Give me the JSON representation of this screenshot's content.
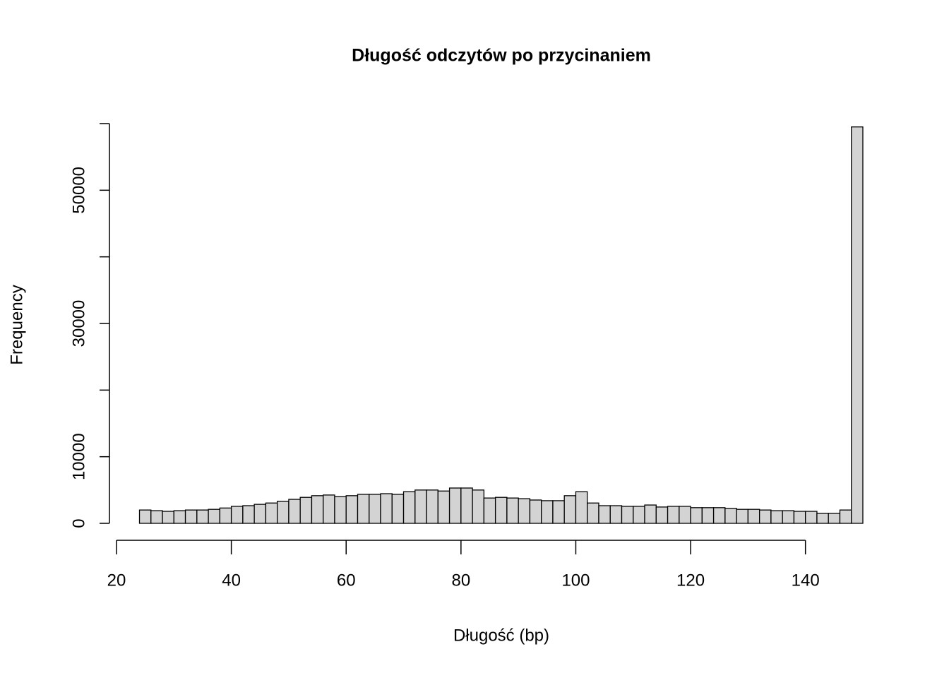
{
  "chart_data": {
    "type": "histogram",
    "title": "Długość odczytów po przycinaniem",
    "x_label": "Długość (bp)",
    "y_label": "Frequency",
    "bins": [
      24,
      26,
      28,
      30,
      32,
      34,
      36,
      38,
      40,
      42,
      44,
      46,
      48,
      50,
      52,
      54,
      56,
      58,
      60,
      62,
      64,
      66,
      68,
      70,
      72,
      74,
      76,
      78,
      80,
      82,
      84,
      86,
      88,
      90,
      92,
      94,
      96,
      98,
      100,
      102,
      104,
      106,
      108,
      110,
      112,
      114,
      116,
      118,
      120,
      122,
      124,
      126,
      128,
      130,
      132,
      134,
      136,
      138,
      140,
      142,
      144,
      146,
      148,
      150
    ],
    "values": [
      2000,
      1900,
      1800,
      1900,
      2000,
      2000,
      2100,
      2300,
      2550,
      2650,
      2850,
      3050,
      3300,
      3600,
      3900,
      4150,
      4250,
      4000,
      4150,
      4350,
      4350,
      4450,
      4350,
      4750,
      5000,
      5000,
      4850,
      5300,
      5300,
      5000,
      3800,
      3900,
      3800,
      3700,
      3500,
      3400,
      3400,
      4150,
      4750,
      3050,
      2650,
      2650,
      2550,
      2550,
      2750,
      2450,
      2550,
      2550,
      2350,
      2350,
      2350,
      2250,
      2100,
      2100,
      2000,
      1900,
      1900,
      1800,
      1800,
      1500,
      1500,
      2000,
      59500
    ],
    "color": "#d3d3d3",
    "xlim": [
      20,
      150
    ],
    "xticks": [
      20,
      40,
      60,
      80,
      100,
      120,
      140
    ],
    "ylim": [
      0,
      60000
    ],
    "yticks": [
      0,
      10000,
      30000,
      50000
    ],
    "yticks_unlabeled": [
      20000,
      40000,
      60000
    ]
  }
}
